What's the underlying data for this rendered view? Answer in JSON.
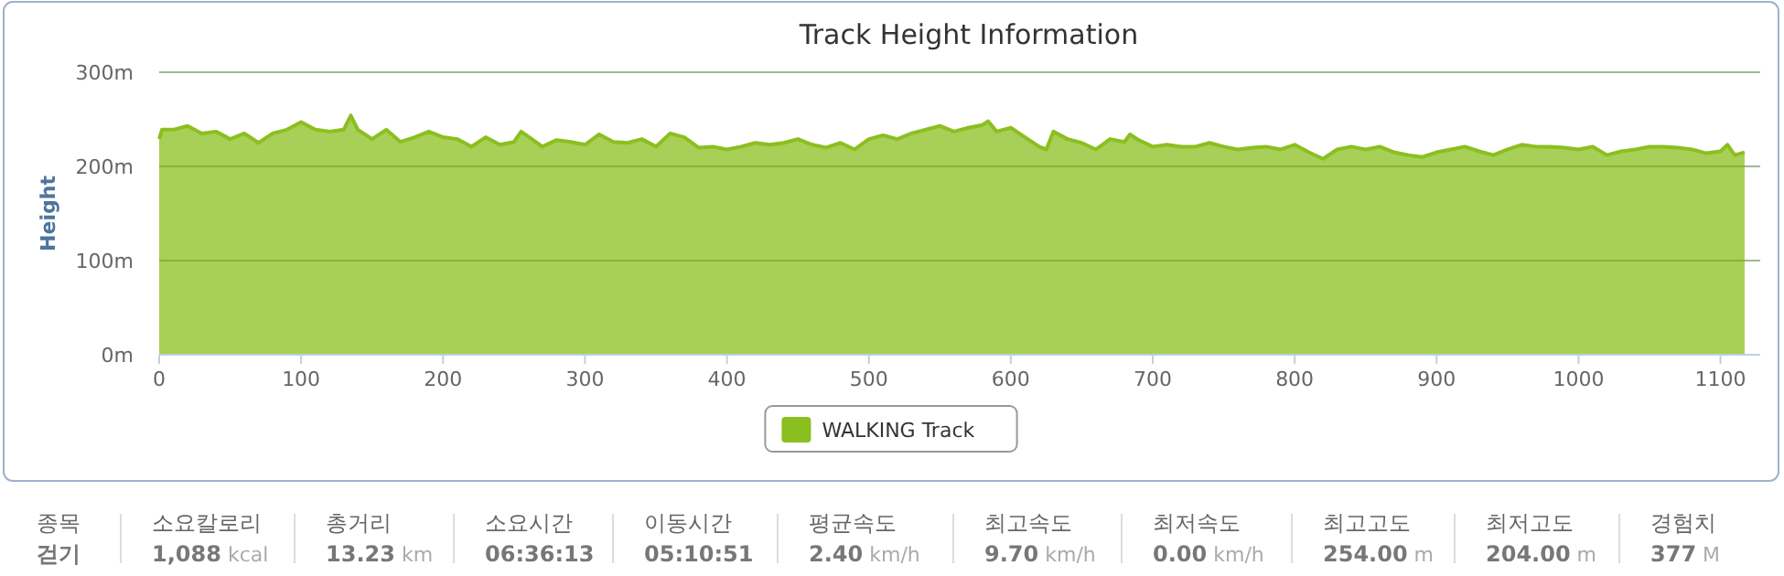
{
  "chart_data": [
    {
      "type": "area",
      "title": "Track Height Information",
      "ylabel": "Height",
      "xlim": [
        0,
        1128
      ],
      "ylim": [
        0,
        300
      ],
      "xticks": [
        0,
        100,
        200,
        300,
        400,
        500,
        600,
        700,
        800,
        900,
        1000,
        1100
      ],
      "yticks": [
        {
          "value": 0,
          "label": "0m"
        },
        {
          "value": 100,
          "label": "100m"
        },
        {
          "value": 200,
          "label": "200m"
        },
        {
          "value": 300,
          "label": "300m"
        }
      ],
      "grid": "y",
      "legend": "bottom",
      "series": [
        {
          "name": "WALKING Track",
          "color": "#8bbf1f",
          "x": [
            0,
            2,
            10,
            20,
            30,
            40,
            50,
            60,
            70,
            80,
            90,
            100,
            110,
            120,
            130,
            135,
            140,
            150,
            160,
            170,
            180,
            190,
            200,
            210,
            220,
            230,
            240,
            250,
            255,
            270,
            280,
            290,
            300,
            310,
            320,
            330,
            340,
            350,
            360,
            370,
            380,
            390,
            400,
            410,
            420,
            430,
            440,
            450,
            460,
            470,
            480,
            490,
            500,
            510,
            520,
            530,
            550,
            560,
            570,
            580,
            584,
            590,
            600,
            610,
            620,
            625,
            630,
            640,
            650,
            660,
            670,
            680,
            684,
            690,
            700,
            710,
            720,
            730,
            740,
            750,
            760,
            770,
            780,
            790,
            800,
            810,
            820,
            830,
            840,
            850,
            860,
            870,
            880,
            890,
            900,
            910,
            920,
            930,
            940,
            950,
            960,
            970,
            980,
            990,
            1000,
            1010,
            1020,
            1030,
            1040,
            1050,
            1060,
            1070,
            1080,
            1090,
            1100,
            1105,
            1110,
            1117
          ],
          "values": [
            229,
            239,
            239,
            243,
            235,
            237,
            229,
            235,
            225,
            235,
            239,
            247,
            239,
            237,
            239,
            254,
            239,
            229,
            239,
            226,
            231,
            237,
            231,
            229,
            221,
            231,
            223,
            226,
            237,
            221,
            228,
            226,
            223,
            234,
            226,
            225,
            229,
            221,
            235,
            231,
            220,
            221,
            218,
            221,
            225,
            223,
            225,
            229,
            223,
            220,
            225,
            218,
            229,
            233,
            229,
            235,
            243,
            237,
            241,
            244,
            248,
            237,
            241,
            231,
            221,
            218,
            237,
            229,
            225,
            218,
            229,
            226,
            234,
            228,
            221,
            223,
            221,
            221,
            225,
            221,
            218,
            220,
            221,
            218,
            223,
            215,
            208,
            218,
            221,
            218,
            221,
            215,
            212,
            210,
            215,
            218,
            221,
            216,
            212,
            218,
            223,
            221,
            221,
            220,
            218,
            221,
            212,
            216,
            218,
            221,
            221,
            220,
            218,
            214,
            216,
            223,
            212,
            215
          ]
        }
      ]
    },
    {
      "type": "other",
      "annotations": [
        "종목",
        "소요칼로리",
        "총거리",
        "소요시간",
        "이동시간",
        "평균속도",
        "최고속도",
        "최저속도",
        "최고고도",
        "최저고도",
        "경험치",
        "걷기",
        "1,088 kcal",
        "13.23 km",
        "06:36:13",
        "05:10:51",
        "2.40 km/h",
        "9.70 km/h",
        "0.00 km/h",
        "254.00 m",
        "204.00 m",
        "377 M"
      ]
    }
  ]
}
